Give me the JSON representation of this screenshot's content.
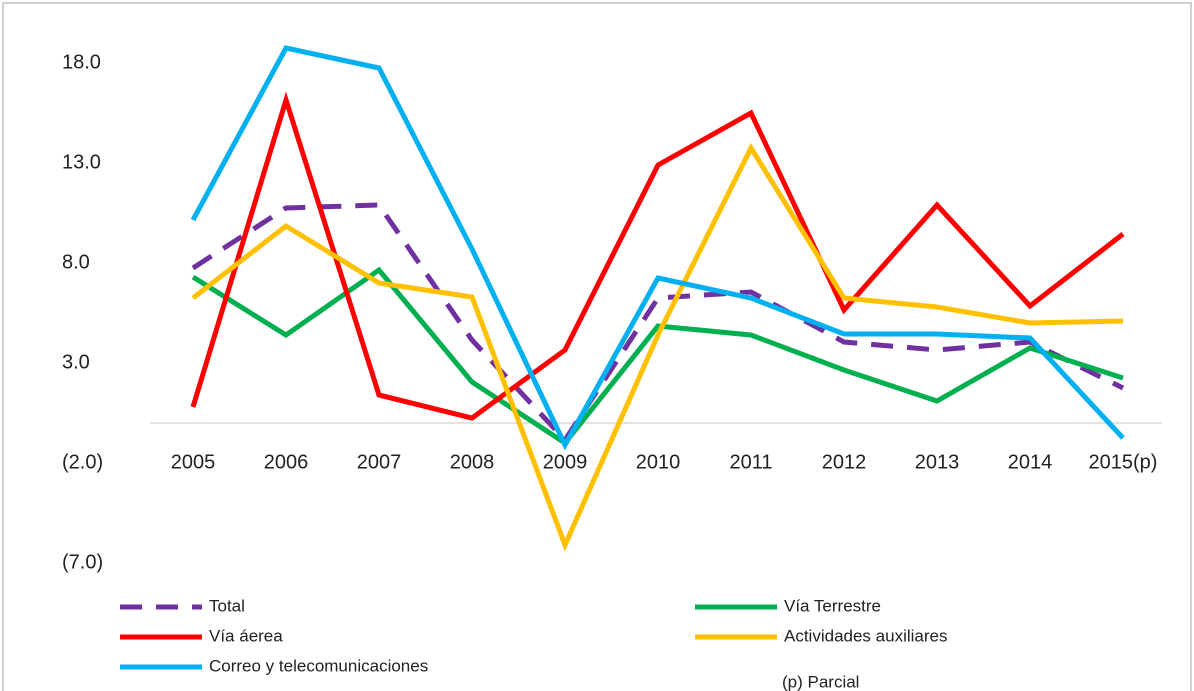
{
  "chart_data": {
    "type": "line",
    "categories": [
      "2005",
      "2006",
      "2007",
      "2008",
      "2009",
      "2010",
      "2011",
      "2012",
      "2013",
      "2014",
      "2015(p)"
    ],
    "series": [
      {
        "name": "Total",
        "color": "#7030a0",
        "dashed": true,
        "values": [
          7.75,
          10.75,
          10.9,
          4.15,
          -0.85,
          6.25,
          6.55,
          4.05,
          3.65,
          4.05,
          1.75
        ]
      },
      {
        "name": "Vía Terrestre",
        "color": "#00b050",
        "values": [
          7.3,
          4.4,
          7.65,
          2.05,
          -1.0,
          4.85,
          4.4,
          2.65,
          1.1,
          3.75,
          2.25
        ]
      },
      {
        "name": "Vía áerea",
        "color": "#ff0000",
        "values": [
          0.8,
          16.15,
          1.4,
          0.25,
          3.65,
          12.9,
          15.5,
          5.65,
          10.9,
          5.85,
          9.45
        ]
      },
      {
        "name": "Actividades auxiliares",
        "color": "#ffc000",
        "values": [
          6.25,
          9.85,
          7.0,
          6.3,
          -6.1,
          4.4,
          13.75,
          6.25,
          5.8,
          5.0,
          5.1
        ]
      },
      {
        "name": "Correo y telecomunicaciones",
        "color": "#00b0f0",
        "values": [
          10.15,
          18.75,
          17.75,
          8.7,
          -1.1,
          7.25,
          6.25,
          4.45,
          4.45,
          4.25,
          -0.75
        ]
      }
    ],
    "ylim": [
      -7,
      20
    ],
    "yticks": [
      {
        "value": 18,
        "label": "18.0"
      },
      {
        "value": 13,
        "label": "13.0"
      },
      {
        "value": 8,
        "label": "8.0"
      },
      {
        "value": 3,
        "label": "3.0"
      },
      {
        "value": -2,
        "label": "(2.0)"
      },
      {
        "value": -7,
        "label": "(7.0)"
      }
    ],
    "note": "(p) Parcial"
  }
}
